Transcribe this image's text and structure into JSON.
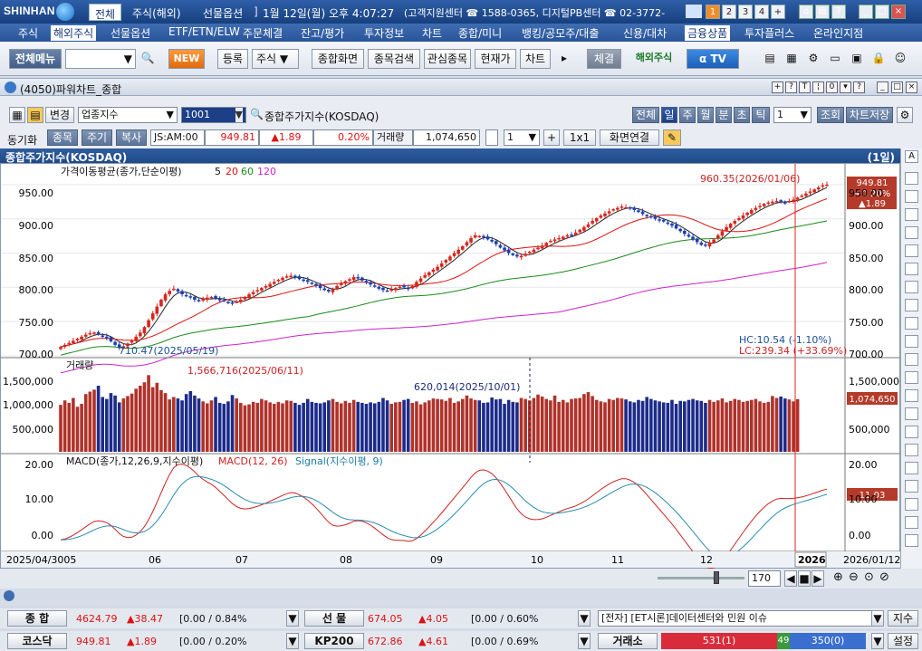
{
  "titlebar": {
    "logo": "SHINHAN",
    "tabs": [
      "전체",
      "주식(해외)",
      "선물옵션"
    ],
    "datetime": "1월 12일(월) 오후 4:07:27",
    "support": "(고객지원센터 ☎ 1588-0365, 디지털PB센터 ☎ 02-3772-",
    "num_buttons": [
      "1",
      "2",
      "3",
      "4",
      "+"
    ]
  },
  "menu": [
    "주식",
    "해외주식",
    "선물옵션",
    "ETF/ETN/ELW",
    "주문체결",
    "잔고/평가",
    "투자정보",
    "차트",
    "종합/미니",
    "뱅킹/공모주/대출",
    "신용/대차",
    "금융상품",
    "투자플러스",
    "온라인지점"
  ],
  "toolbar": {
    "all_menu": "전체메뉴",
    "new": "NEW",
    "register": "등록",
    "stock": "주식",
    "combined": "종합화면",
    "search": "종목검색",
    "watch": "관심종목",
    "current": "현재가",
    "chart": "차트",
    "settle": "체결",
    "overseas": "해외주식",
    "tv": "TV"
  },
  "window": {
    "title": "(4050)파워차트_종합"
  },
  "controls": {
    "change": "변경",
    "category": "업종지수",
    "code": "1001",
    "name": "종합주가지수(KOSDAQ)",
    "periods": [
      "전체",
      "일",
      "주",
      "월",
      "분",
      "초",
      "틱"
    ],
    "period_count": "1",
    "query": "조회",
    "save": "차트저장",
    "sync": "동기화",
    "stock_tab": "종목",
    "period_tab": "주기",
    "copy": "복사",
    "code_field": "JS:AM:00",
    "price": "949.81",
    "change_val": "▲1.89",
    "pct": "0.20%",
    "volume_label": "거래량",
    "volume": "1,074,650",
    "count": "1",
    "oneby": "1x1",
    "link": "화면연결"
  },
  "chart_header": {
    "title": "종합주가지수(KOSDAQ)",
    "unit": "(1일)"
  },
  "price_panel": {
    "label": "가격이동평균(종가,단순이평)",
    "ma_labels": [
      "5",
      "20",
      "60",
      "120"
    ],
    "max_label": "960.35(2026/01/06)",
    "min_label": "710.47(2025/05/19)",
    "hc": "HC:10.54 (-1.10%)",
    "lc": "LC:239.34 (+33.69%)",
    "current": [
      "949.81",
      "+0.20%",
      "▲1.89"
    ]
  },
  "volume_panel": {
    "label": "거래량",
    "max_label": "1,566,716(2025/06/11)",
    "mid_label": "620,014(2025/10/01)",
    "current": "1,074,650"
  },
  "macd_panel": {
    "label_black": "MACD(종가,12,26,9,지수이평)",
    "label_red": "MACD(12, 26)",
    "label_blue": "Signal(지수이평, 9)",
    "current": "11.03"
  },
  "xaxis": {
    "start": "2025/04/3005",
    "months": [
      "06",
      "07",
      "08",
      "09",
      "10",
      "11",
      "12"
    ],
    "year": "2026",
    "end": "2026/01/12",
    "zoom": "170"
  },
  "chart_data": {
    "type": "candlestick",
    "title": "종합주가지수(KOSDAQ)",
    "price_ticks": [
      "950.00",
      "900.00",
      "850.00",
      "800.00",
      "750.00",
      "700.00"
    ],
    "volume_ticks": [
      "1,500,000",
      "1,000,000",
      "500,000"
    ],
    "macd_ticks": [
      "20.00",
      "10.00",
      "0.00"
    ],
    "ylim_price": [
      700,
      975
    ],
    "ylim_volume": [
      0,
      1850000
    ],
    "ylim_macd": [
      -3,
      22
    ],
    "closes": [
      713,
      716,
      719,
      722,
      725,
      728,
      731,
      733,
      734,
      731,
      728,
      726,
      721,
      716,
      712,
      714,
      718,
      722,
      728,
      734,
      742,
      752,
      762,
      772,
      782,
      790,
      795,
      798,
      794,
      790,
      787,
      785,
      782,
      780,
      783,
      785,
      786,
      784,
      781,
      780,
      778,
      777,
      779,
      782,
      786,
      790,
      793,
      796,
      799,
      802,
      805,
      808,
      811,
      814,
      816,
      817,
      815,
      812,
      810,
      808,
      805,
      802,
      799,
      796,
      794,
      797,
      802,
      806,
      809,
      812,
      815,
      813,
      810,
      807,
      804,
      801,
      798,
      796,
      795,
      797,
      799,
      801,
      800,
      798,
      802,
      808,
      813,
      818,
      822,
      826,
      830,
      835,
      840,
      845,
      850,
      855,
      860,
      866,
      872,
      876,
      875,
      873,
      870,
      867,
      863,
      858,
      854,
      850,
      847,
      845,
      846,
      849,
      852,
      855,
      858,
      861,
      865,
      868,
      870,
      872,
      874,
      876,
      877,
      880,
      884,
      888,
      892,
      897,
      901,
      905,
      908,
      911,
      914,
      916,
      918,
      917,
      915,
      913,
      910,
      907,
      904,
      902,
      900,
      898,
      896,
      893,
      890,
      886,
      882,
      878,
      874,
      870,
      866,
      862,
      861,
      865,
      870,
      876,
      882,
      888,
      893,
      897,
      901,
      905,
      909,
      913,
      916,
      919,
      922,
      924,
      925,
      926,
      925,
      924,
      926,
      928,
      931,
      934,
      937,
      940,
      943,
      946,
      949,
      950
    ],
    "volumes": [
      960,
      1050,
      1000,
      1100,
      920,
      980,
      1180,
      1230,
      1270,
      1350,
      1120,
      1080,
      1200,
      1150,
      1010,
      1090,
      1140,
      1190,
      1290,
      1350,
      1420,
      1567,
      1320,
      1410,
      1260,
      1200,
      1070,
      1120,
      1090,
      1050,
      1180,
      1240,
      1150,
      1090,
      1030,
      990,
      1050,
      1120,
      1000,
      980,
      1030,
      1160,
      1090,
      1000,
      950,
      970,
      1020,
      1000,
      1080,
      1050,
      1010,
      980,
      1020,
      990,
      1050,
      1040,
      1000,
      960,
      1000,
      1080,
      1020,
      1000,
      990,
      1010,
      1050,
      1080,
      1020,
      990,
      1040,
      1000,
      1060,
      1020,
      1000,
      980,
      1010,
      990,
      1020,
      1100,
      1050,
      980,
      1010,
      1020,
      1060,
      1080,
      1000,
      1030,
      970,
      1010,
      1050,
      1090,
      1080,
      1070,
      1040,
      1100,
      1000,
      1030,
      1080,
      1150,
      1090,
      1060,
      1050,
      1000,
      1010,
      1110,
      1070,
      1080,
      980,
      1060,
      1020,
      1010,
      1100,
      1080,
      1050,
      1100,
      1170,
      1130,
      1080,
      1050,
      1150,
      1020,
      1060,
      1010,
      1080,
      1090,
      1100,
      1180,
      1220,
      1140,
      1060,
      1030,
      1010,
      1080,
      1060,
      1100,
      1090,
      1070,
      1030,
      1010,
      1060,
      1040,
      1120,
      1080,
      1050,
      1030,
      1010,
      1000,
      1060,
      980,
      1040,
      1030,
      1060,
      1080,
      1050,
      1040,
      1000,
      1060,
      1020,
      1050,
      1090,
      1010,
      1040,
      1080,
      1060,
      1020,
      1040,
      1060,
      1080,
      1030,
      1000,
      1020,
      1140,
      1100,
      1130,
      1090,
      1070,
      1030,
      1075
    ],
    "max_point": {
      "date": "2026/01/06",
      "value": 960.35
    },
    "min_point": {
      "date": "2025/05/19",
      "value": 710.47
    },
    "volume_max": {
      "date": "2025/06/11",
      "value": 1566716
    }
  },
  "bottom": {
    "range": "170",
    "kospi": {
      "label": "종 합",
      "val": "4624.79",
      "chg": "▲38.47",
      "bracket": "[0.00 / 0.84%"
    },
    "futures": {
      "label": "선 물",
      "val": "674.05",
      "chg": "▲4.05",
      "bracket": "[0.00 / 0.60%"
    },
    "news": "[전자] [ET시론]데이터센터와 민원 이슈",
    "news_btn": "지수",
    "kosdaq": {
      "label": "코스닥",
      "val": "949.81",
      "chg": "▲1.89",
      "bracket": "[0.00 / 0.20%"
    },
    "kp200": {
      "label": "KP200",
      "val": "672.86",
      "chg": "▲4.61",
      "bracket": "[0.00 / 0.69%"
    },
    "trade": {
      "label": "거래소",
      "up": "531(1)",
      "flat": "49",
      "down": "350(0)"
    },
    "settings": "설정"
  }
}
